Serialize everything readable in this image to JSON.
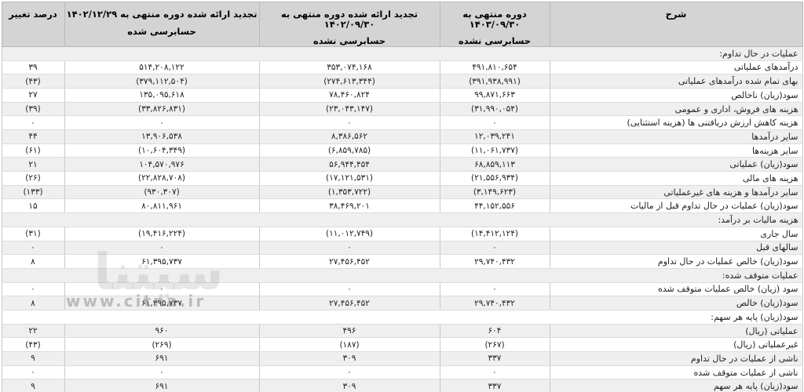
{
  "table": {
    "header": {
      "desc": "شرح",
      "current_line1": "دوره منتهی به ۱۴۰۳/۰۹/۳۰",
      "current_line2": "حسابرسی نشده",
      "restated_quarter_line1": "تجدید ارائه شده دوره منتهی به ۱۴۰۲/۰۹/۳۰",
      "restated_quarter_line2": "حسابرسی نشده",
      "restated_year_line1": "تجدید ارائه شده دوره منتهی به ۱۴۰۲/۱۲/۲۹",
      "restated_year_line2": "حسابرسی شده",
      "pct": "درصد تغییر"
    },
    "rows": [
      {
        "type": "section",
        "label": "عملیات در حال تداوم:"
      },
      {
        "type": "data",
        "label": "درآمدهای عملیاتی",
        "values": [
          "۴۹۱,۸۱۰,۶۵۴",
          "۳۵۳,۰۷۴,۱۶۸",
          "۵۱۴,۲۰۸,۱۲۲",
          "۳۹"
        ]
      },
      {
        "type": "data",
        "label": "بهای تمام شده درآمدهای عملیاتی",
        "values": [
          "(۳۹۱,۹۳۸,۹۹۱)",
          "(۲۷۴,۶۱۳,۳۴۴)",
          "(۳۷۹,۱۱۲,۵۰۴)",
          "(۴۳)"
        ]
      },
      {
        "type": "data",
        "label": "سود(زیان) ناخالص",
        "values": [
          "۹۹,۸۷۱,۶۶۳",
          "۷۸,۴۶۰,۸۲۴",
          "۱۳۵,۰۹۵,۶۱۸",
          "۲۷"
        ]
      },
      {
        "type": "data",
        "label": "هزینه های فروش، اداری و عمومی",
        "values": [
          "(۳۱,۹۹۰,۰۵۴)",
          "(۲۳,۰۴۳,۱۴۷)",
          "(۳۳,۸۲۶,۸۳۱)",
          "(۳۹)"
        ]
      },
      {
        "type": "data",
        "label": "هزینه کاهش ارزش دریافتنی ها (هزینه استثنایی)",
        "values": [
          "۰",
          "۰",
          "۰",
          "۰"
        ]
      },
      {
        "type": "data",
        "label": "سایر درآمدها",
        "values": [
          "۱۲,۰۳۹,۲۴۱",
          "۸,۳۸۶,۵۶۲",
          "۱۳,۹۰۶,۵۳۸",
          "۴۴"
        ]
      },
      {
        "type": "data",
        "label": "سایر هزینه‌ها",
        "values": [
          "(۱۱,۰۶۱,۷۳۷)",
          "(۶,۸۵۹,۷۸۵)",
          "(۱۰,۶۰۴,۳۴۹)",
          "(۶۱)"
        ]
      },
      {
        "type": "data",
        "label": "سود(زیان) عملیاتی",
        "values": [
          "۶۸,۸۵۹,۱۱۳",
          "۵۶,۹۴۴,۴۵۴",
          "۱۰۴,۵۷۰,۹۷۶",
          "۲۱"
        ]
      },
      {
        "type": "data",
        "label": "هزینه های مالی",
        "values": [
          "(۲۱,۵۵۶,۹۳۴)",
          "(۱۷,۱۲۱,۵۳۱)",
          "(۲۲,۸۲۸,۷۰۸)",
          "(۲۶)"
        ]
      },
      {
        "type": "data",
        "label": "سایر درآمدها و هزینه های غیرعملیاتی",
        "values": [
          "(۳,۱۴۹,۶۲۳)",
          "(۱,۳۵۳,۷۲۲)",
          "(۹۳۰,۳۰۷)",
          "(۱۳۳)"
        ]
      },
      {
        "type": "data",
        "label": "سود(زیان) عملیات در حال تداوم قبل از مالیات",
        "values": [
          "۴۴,۱۵۲,۵۵۶",
          "۳۸,۴۶۹,۲۰۱",
          "۸۰,۸۱۱,۹۶۱",
          "۱۵"
        ]
      },
      {
        "type": "section",
        "label": "هزینه مالیات بر درآمد:"
      },
      {
        "type": "data",
        "label": "سال جاری",
        "values": [
          "(۱۴,۴۱۲,۱۲۴)",
          "(۱۱,۰۱۲,۷۴۹)",
          "(۱۹,۴۱۶,۲۲۴)",
          "(۳۱)"
        ]
      },
      {
        "type": "data",
        "label": "سالهای قبل",
        "values": [
          "۰",
          "۰",
          "۰",
          "۰"
        ]
      },
      {
        "type": "data",
        "label": "سود(زیان) خالص عملیات در حال تداوم",
        "values": [
          "۲۹,۷۴۰,۴۳۲",
          "۲۷,۴۵۶,۴۵۲",
          "۶۱,۳۹۵,۷۳۷",
          "۸"
        ]
      },
      {
        "type": "section",
        "label": "عملیات متوقف شده:"
      },
      {
        "type": "data",
        "label": "سود (زیان) خالص عملیات متوقف شده",
        "values": [
          "۰",
          "۰",
          "۰",
          "۰"
        ]
      },
      {
        "type": "data",
        "label": "سود(زیان) خالص",
        "values": [
          "۲۹,۷۴۰,۴۳۲",
          "۲۷,۴۵۶,۴۵۲",
          "۶۱,۳۹۵,۷۳۷",
          "۸"
        ]
      },
      {
        "type": "section",
        "label": "سود(زیان) پایه هر سهم:"
      },
      {
        "type": "data",
        "label": "عملیاتی (ریال)",
        "values": [
          "۶۰۴",
          "۴۹۶",
          "۹۶۰",
          "۲۲"
        ]
      },
      {
        "type": "data",
        "label": "غیرعملیاتی (ریال)",
        "values": [
          "(۲۶۷)",
          "(۱۸۷)",
          "(۲۶۹)",
          "(۴۳)"
        ]
      },
      {
        "type": "data",
        "label": "ناشی از عملیات در حال تداوم",
        "values": [
          "۳۳۷",
          "۳۰۹",
          "۶۹۱",
          "۹"
        ]
      },
      {
        "type": "data",
        "label": "ناشی از عملیات متوقف شده",
        "values": [
          "۰",
          "۰",
          "۰",
          "۰"
        ]
      },
      {
        "type": "data",
        "label": "سود(زیان) پایه هر سهم",
        "values": [
          "۳۳۷",
          "۳۰۹",
          "۶۹۱",
          "۹"
        ]
      }
    ]
  },
  "watermark": {
    "logo": "سیتنا",
    "url": "www.citna.ir"
  },
  "colors": {
    "header_bg": "#d4d4d4",
    "row_alt_bg": "#efefef",
    "row_bg": "#ffffff",
    "border": "#c9c9c9",
    "text": "#222222"
  }
}
